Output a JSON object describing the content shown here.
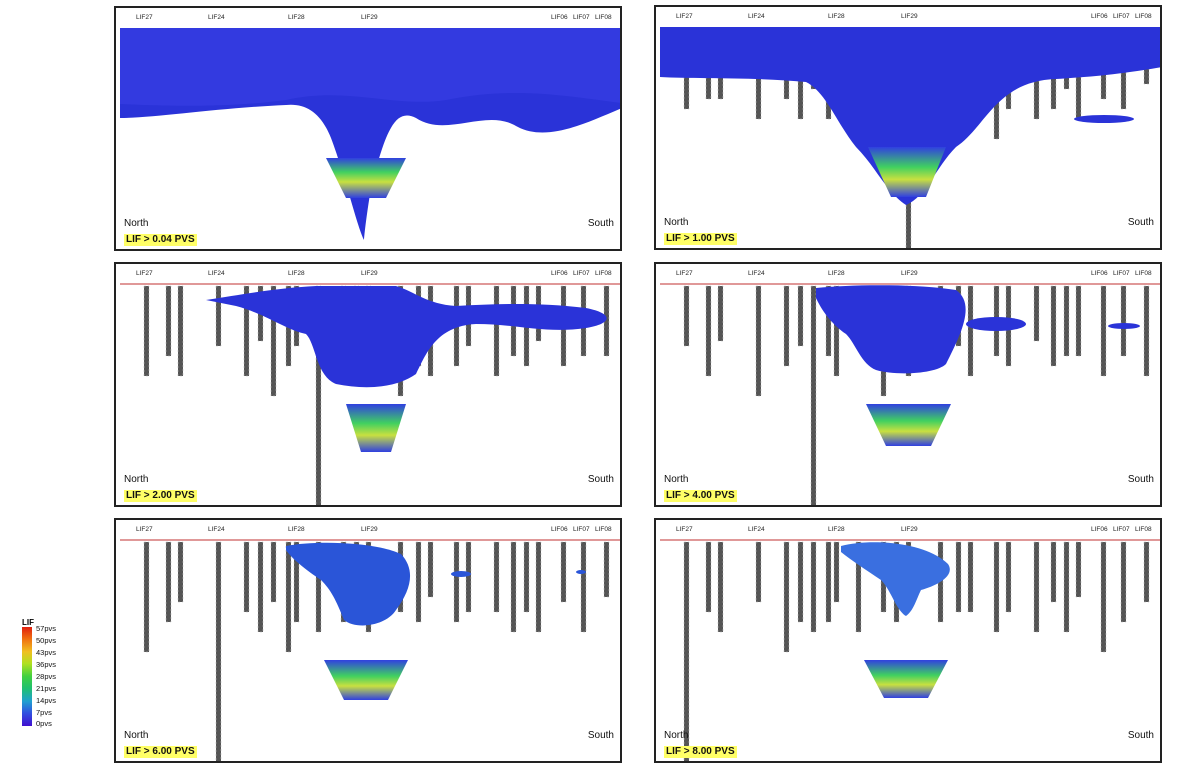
{
  "well_labels": [
    "LIF27",
    "LIF24",
    "LIF28",
    "LIF29",
    "LIF06",
    "LIF07",
    "LIF08"
  ],
  "direction": {
    "left": "North",
    "right": "South"
  },
  "panels": [
    {
      "id": "p1",
      "caption": "LIF > 0.04 PVS"
    },
    {
      "id": "p2",
      "caption": "LIF > 1.00 PVS"
    },
    {
      "id": "p3",
      "caption": "LIF > 2.00 PVS"
    },
    {
      "id": "p4",
      "caption": "LIF > 4.00 PVS"
    },
    {
      "id": "p5",
      "caption": "LIF > 6.00 PVS"
    },
    {
      "id": "p6",
      "caption": "LIF > 8.00 PVS"
    }
  ],
  "legend": {
    "title": "LIF",
    "ticks": [
      "57pvs",
      "50pvs",
      "43pvs",
      "36pvs",
      "28pvs",
      "21pvs",
      "14pvs",
      "7pvs",
      "0pvs"
    ],
    "colors": {
      "high": "#e02010",
      "mid": "#40d040",
      "low": "#4010d0"
    }
  }
}
